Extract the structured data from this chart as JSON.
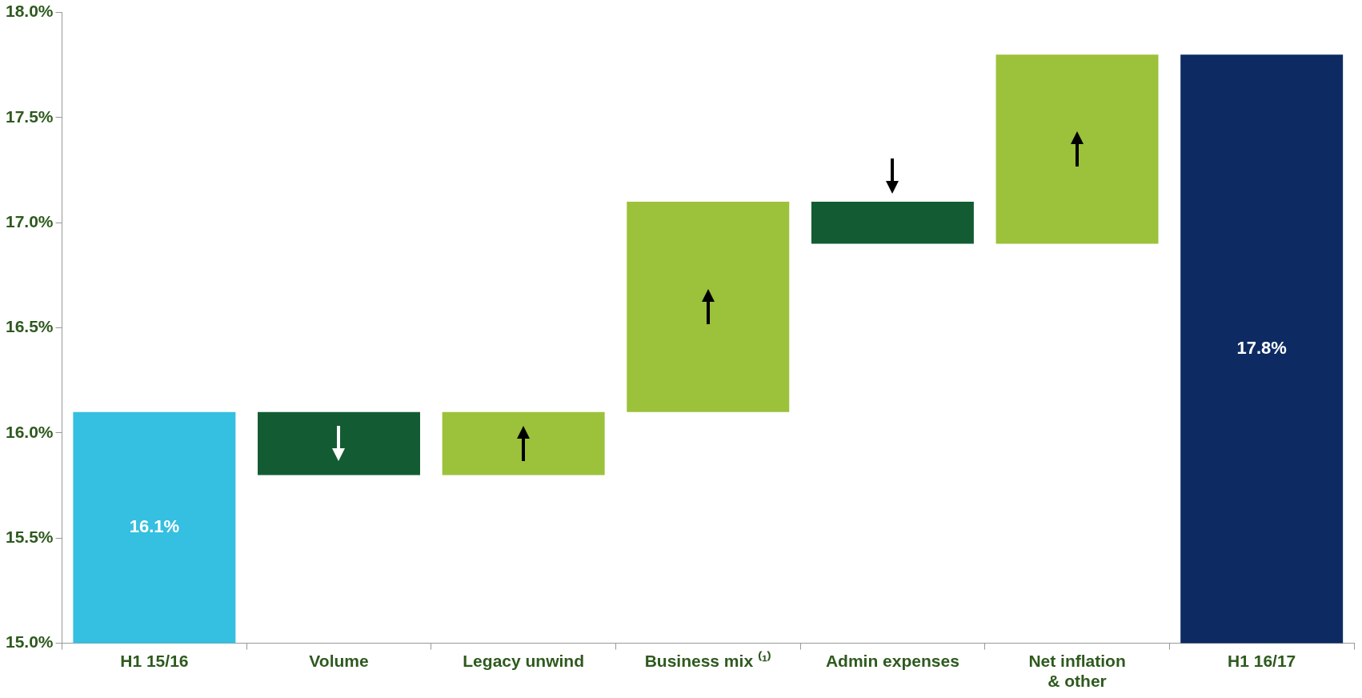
{
  "chart_data": {
    "type": "bar",
    "categories": [
      "H1 15/16",
      "Volume",
      "Legacy unwind",
      "Business mix ⁽¹⁾",
      "Admin expenses",
      "Net inflation & other",
      "H1 16/17"
    ],
    "values": [
      16.1,
      -0.3,
      0.3,
      1.0,
      -0.2,
      0.9,
      17.8
    ],
    "base": [
      null,
      16.1,
      15.8,
      16.1,
      17.1,
      16.9,
      null
    ],
    "colors": [
      "#35bfe0",
      "#135c33",
      "#9cc13a",
      "#9cc13a",
      "#135c33",
      "#9cc13a",
      "#0d2b62"
    ],
    "value_labels": [
      "16.1%",
      null,
      null,
      null,
      null,
      null,
      "17.8%"
    ],
    "ylim": [
      15.0,
      18.0
    ],
    "yticks": [
      {
        "value": 15.0,
        "label": "15.0%"
      },
      {
        "value": 15.5,
        "label": "15.5%"
      },
      {
        "value": 16.0,
        "label": "16.0%"
      },
      {
        "value": 16.5,
        "label": "16.5%"
      },
      {
        "value": 17.0,
        "label": "17.0%"
      },
      {
        "value": 17.5,
        "label": "17.5%"
      },
      {
        "value": 18.0,
        "label": "18.0%"
      }
    ],
    "grid": false,
    "legend": false
  }
}
